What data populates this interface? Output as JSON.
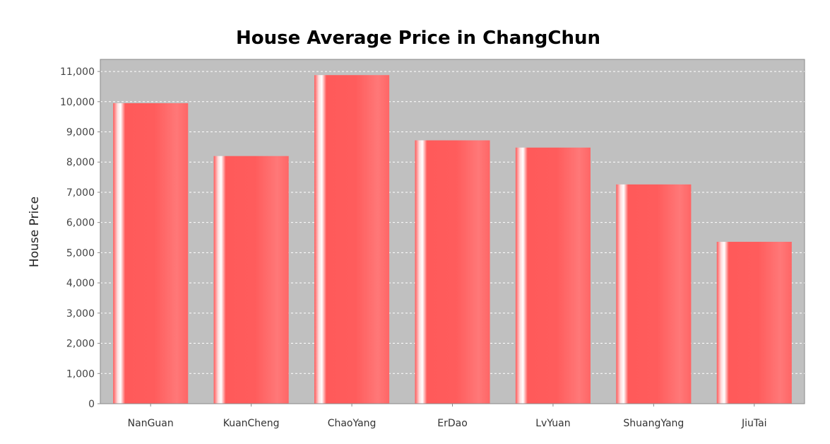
{
  "colors": {
    "plot_background": "#c0c0c0",
    "bar": "#ff5555",
    "bar_highlight": "#ffffff",
    "gridline": "#ffffff"
  },
  "chart_data": {
    "type": "bar",
    "title": "House Average Price in ChangChun",
    "xlabel": "",
    "ylabel": "House Price",
    "categories": [
      "NanGuan",
      "KuanCheng",
      "ChaoYang",
      "ErDao",
      "LvYuan",
      "ShuangYang",
      "JiuTai"
    ],
    "values": [
      9950,
      8200,
      10880,
      8720,
      8480,
      7260,
      5360
    ],
    "ylim": [
      0,
      11400
    ],
    "yticks": [
      0,
      1000,
      2000,
      3000,
      4000,
      5000,
      6000,
      7000,
      8000,
      9000,
      10000,
      11000
    ],
    "ytick_labels": [
      "0",
      "1,000",
      "2,000",
      "3,000",
      "4,000",
      "5,000",
      "6,000",
      "7,000",
      "8,000",
      "9,000",
      "10,000",
      "11,000"
    ],
    "grid": true,
    "legend": "none"
  }
}
